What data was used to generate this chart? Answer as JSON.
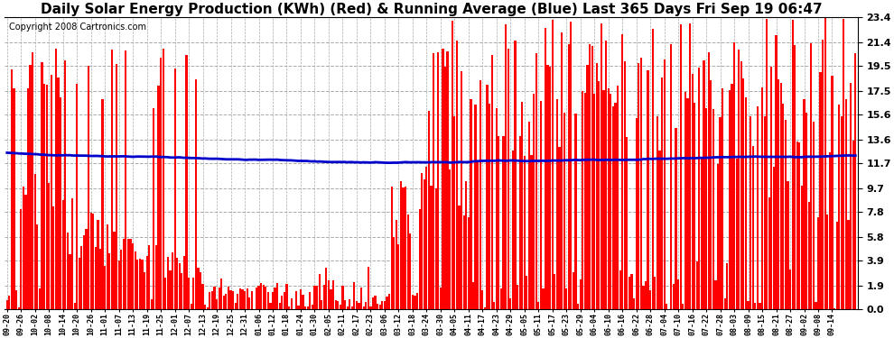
{
  "title": "Daily Solar Energy Production (KWh) (Red) & Running Average (Blue) Last 365 Days Fri Sep 19 06:47",
  "copyright": "Copyright 2008 Cartronics.com",
  "yticks": [
    0.0,
    1.9,
    3.9,
    5.8,
    7.8,
    9.7,
    11.7,
    13.6,
    15.6,
    17.5,
    19.5,
    21.4,
    23.4
  ],
  "ylim": [
    0.0,
    23.4
  ],
  "bar_color": "#ff0000",
  "avg_color": "#0000cc",
  "bg_color": "#ffffff",
  "grid_color": "#aaaaaa",
  "title_fontsize": 11,
  "copyright_fontsize": 7,
  "bar_width": 0.85,
  "n_days": 365,
  "xtick_labels": [
    "09-20",
    "09-26",
    "10-02",
    "10-08",
    "10-14",
    "10-20",
    "10-26",
    "11-01",
    "11-07",
    "11-13",
    "11-19",
    "11-25",
    "12-01",
    "12-07",
    "12-13",
    "12-19",
    "12-25",
    "12-31",
    "01-06",
    "01-12",
    "01-18",
    "01-24",
    "01-30",
    "02-05",
    "02-11",
    "02-17",
    "02-23",
    "03-06",
    "03-12",
    "03-18",
    "03-24",
    "03-30",
    "04-05",
    "04-11",
    "04-17",
    "04-23",
    "04-29",
    "05-05",
    "05-11",
    "05-17",
    "05-23",
    "05-29",
    "06-04",
    "06-10",
    "06-16",
    "06-22",
    "06-28",
    "07-04",
    "07-10",
    "07-16",
    "07-22",
    "07-28",
    "08-03",
    "08-09",
    "08-15",
    "08-21",
    "08-27",
    "09-02",
    "09-08",
    "09-14"
  ]
}
